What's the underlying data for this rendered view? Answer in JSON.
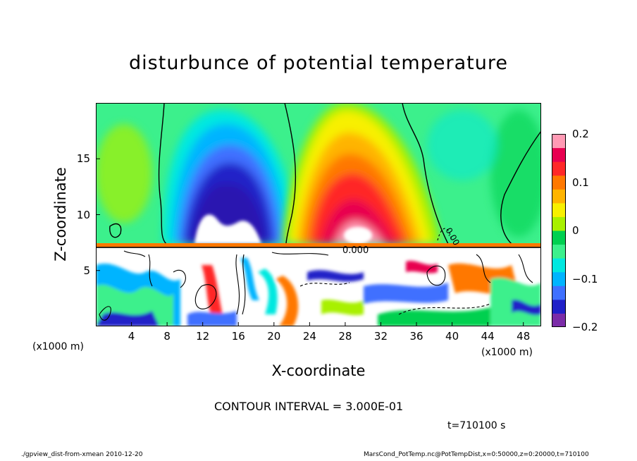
{
  "chart_data": {
    "type": "heatmap",
    "title": "disturbunce of potential temperature",
    "xlabel": "X-coordinate",
    "ylabel": "Z-coordinate",
    "x_unit_left": "(x1000 m)",
    "x_unit_right": "(x1000 m)",
    "x_ticks": [
      "4",
      "8",
      "12",
      "16",
      "20",
      "24",
      "28",
      "32",
      "36",
      "40",
      "44",
      "48"
    ],
    "x_tick_values": [
      4,
      8,
      12,
      16,
      20,
      24,
      28,
      32,
      36,
      40,
      44,
      48
    ],
    "xlim": [
      0,
      50
    ],
    "y_ticks": [
      "5",
      "10",
      "15"
    ],
    "y_tick_values": [
      5,
      10,
      15
    ],
    "ylim": [
      0,
      20
    ],
    "colorbar": {
      "range": [
        -0.2,
        0.2
      ],
      "ticks": [
        "0.2",
        "0.1",
        "0",
        "−0.1",
        "−0.2"
      ],
      "tick_values": [
        0.2,
        0.1,
        0,
        -0.1,
        -0.2
      ]
    },
    "contour_labels": [
      "0.000",
      "0.00"
    ],
    "contour_interval": "CONTOUR INTERVAL = 3.000E-01",
    "time": "t=710100 s",
    "features": [
      {
        "kind": "cold anomaly",
        "x_center": 15,
        "z_top": 17.5,
        "min": -0.2
      },
      {
        "kind": "warm anomaly",
        "x_center": 29.5,
        "z_top": 18.5,
        "max": 0.2
      },
      {
        "kind": "turbulent layer",
        "z_range": [
          0,
          7.3
        ]
      }
    ]
  },
  "footer": {
    "left": "./gpview_dist-from-xmean  2010-12-20",
    "right": "MarsCond_PotTemp.nc@PotTempDist,x=0:50000,z=0:20000,t=710100"
  },
  "colors": {
    "scale": [
      "#7b2ca8",
      "#2020c8",
      "#3f70ff",
      "#00b4ff",
      "#00e8e0",
      "#3cf08c",
      "#00d050",
      "#a8f000",
      "#f8f000",
      "#ffb400",
      "#ff7800",
      "#ff2828",
      "#e80050",
      "#ff9ab4"
    ]
  }
}
